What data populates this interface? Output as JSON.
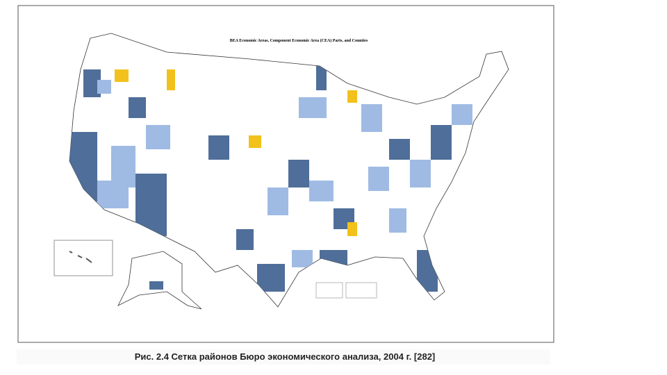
{
  "map": {
    "title": "BEA Economic Areas, Component Economic Area (CEA) Parts, and Counties"
  },
  "caption": "Рис. 2.4 Сетка районов Бюро экономического анализа, 2004 г.  [282]"
}
